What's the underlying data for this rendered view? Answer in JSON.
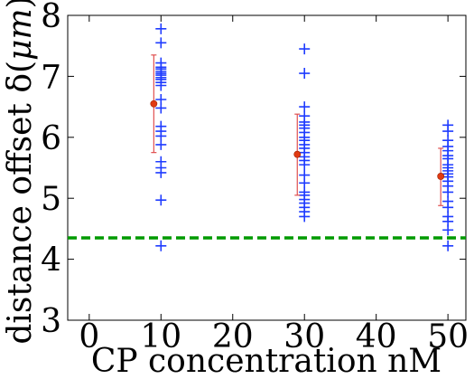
{
  "chart_data": {
    "type": "scatter",
    "xlabel": "CP concentration nM",
    "ylabel_main": "distance offset δ(",
    "ylabel_unit": "μm",
    "ylabel_close": ")",
    "xlim": [
      -3,
      52.5
    ],
    "ylim": [
      3,
      8
    ],
    "xticks": [
      0,
      10,
      20,
      30,
      40,
      50
    ],
    "yticks": [
      3,
      4,
      5,
      6,
      7,
      8
    ],
    "colors": {
      "points": "#1f3cff",
      "mean": "#e03a12",
      "errorbar": "#e05050",
      "reference": "#009a00"
    },
    "reference_line": {
      "y": 4.35,
      "style": "dashed"
    },
    "series": [
      {
        "x": 10,
        "values": [
          7.78,
          7.55,
          7.22,
          7.15,
          7.12,
          7.08,
          7.05,
          7.02,
          6.98,
          6.95,
          6.9,
          6.85,
          6.62,
          6.48,
          6.18,
          6.1,
          6.02,
          5.88,
          5.6,
          5.5,
          5.42,
          4.97,
          4.22
        ],
        "mean": {
          "x": 9,
          "y": 6.55
        },
        "errorbar": {
          "low": 5.75,
          "high": 7.35
        }
      },
      {
        "x": 30,
        "values": [
          7.45,
          7.05,
          6.5,
          6.35,
          6.25,
          6.2,
          6.15,
          6.08,
          6.0,
          5.95,
          5.88,
          5.82,
          5.75,
          5.68,
          5.62,
          5.55,
          5.38,
          5.25,
          5.1,
          5.05,
          4.98,
          4.92,
          4.85,
          4.78,
          4.7
        ],
        "mean": {
          "x": 29,
          "y": 5.72
        },
        "errorbar": {
          "low": 5.05,
          "high": 6.38
        }
      },
      {
        "x": 50,
        "values": [
          6.2,
          6.1,
          5.95,
          5.85,
          5.78,
          5.7,
          5.65,
          5.55,
          5.5,
          5.45,
          5.4,
          5.35,
          5.28,
          5.2,
          5.1,
          4.95,
          4.85,
          4.7,
          4.62,
          4.48,
          4.22
        ],
        "mean": {
          "x": 49,
          "y": 5.36
        },
        "errorbar": {
          "low": 4.88,
          "high": 5.82
        }
      }
    ]
  }
}
